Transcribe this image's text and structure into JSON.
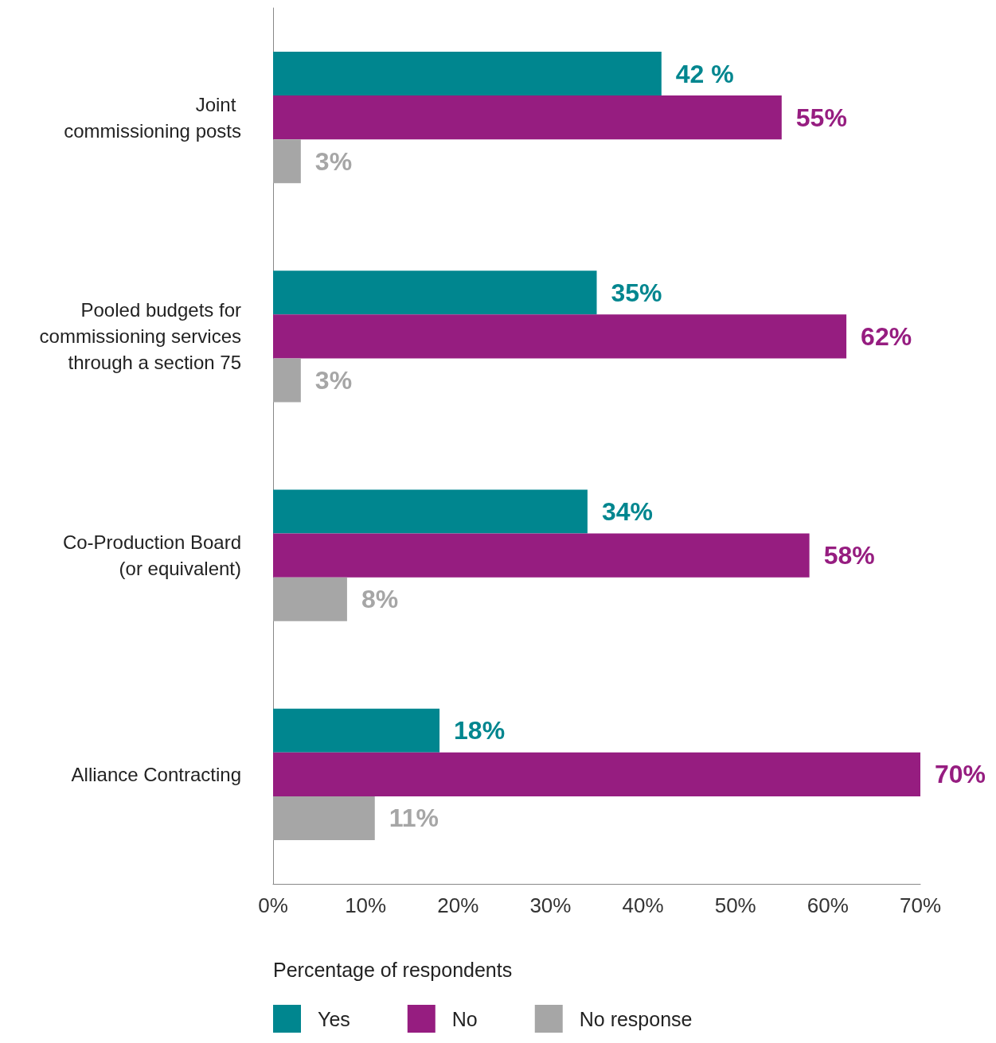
{
  "chart_data": {
    "type": "bar",
    "orientation": "horizontal",
    "xlabel": "Percentage of respondents",
    "categories": [
      "Joint \ncommissioning posts",
      "Pooled budgets for\ncommissioning services\nthrough a section 75",
      "Co-Production Board\n(or equivalent)",
      "Alliance Contracting"
    ],
    "series": [
      {
        "name": "Yes",
        "color": "#00868f",
        "values": [
          42,
          35,
          34,
          18
        ],
        "value_labels": [
          "42 %",
          "35%",
          "34%",
          "18%"
        ]
      },
      {
        "name": "No",
        "color": "#961d80",
        "values": [
          55,
          62,
          58,
          70
        ],
        "value_labels": [
          "55%",
          "62%",
          "58%",
          "70%"
        ]
      },
      {
        "name": "No response",
        "color": "#a6a6a6",
        "values": [
          3,
          3,
          8,
          11
        ],
        "value_labels": [
          "3%",
          "3%",
          "8%",
          "11%"
        ]
      }
    ],
    "xlim": [
      0,
      70
    ],
    "xticks": [
      {
        "value": 0,
        "label": "0%"
      },
      {
        "value": 10,
        "label": "10%"
      },
      {
        "value": 20,
        "label": "20%"
      },
      {
        "value": 30,
        "label": "30%"
      },
      {
        "value": 40,
        "label": "40%"
      },
      {
        "value": 50,
        "label": "50%"
      },
      {
        "value": 60,
        "label": "60%"
      },
      {
        "value": 70,
        "label": "70%"
      }
    ],
    "grid": false,
    "legend": "bottom"
  }
}
